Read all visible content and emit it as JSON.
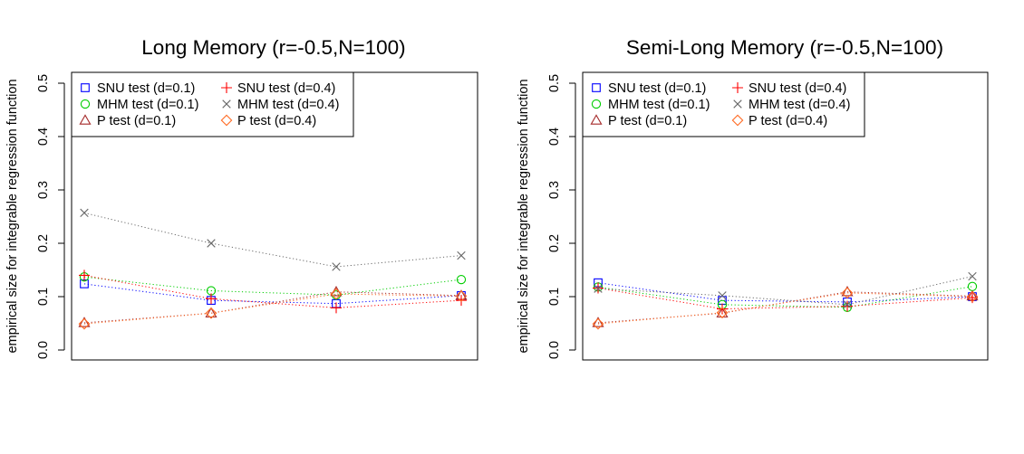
{
  "chart_data": [
    {
      "type": "scatter",
      "title": "Long Memory (r=-0.5,N=100)",
      "xlabel": "",
      "ylabel": "empirical size for integrable regression function",
      "ylim": [
        0,
        0.5
      ],
      "yticks": [
        "0.0",
        "0.1",
        "0.2",
        "0.3",
        "0.4",
        "0.5"
      ],
      "x": [
        1,
        2,
        3,
        4
      ],
      "grid": false,
      "legend_position": "top-left",
      "series": [
        {
          "name": "SNU test (d=0.1)",
          "marker": "square",
          "color": "#0000FF",
          "values": [
            0.124,
            0.093,
            0.087,
            0.102
          ]
        },
        {
          "name": "MHM test (d=0.1)",
          "marker": "circle",
          "color": "#00CD00",
          "values": [
            0.137,
            0.111,
            0.103,
            0.132
          ]
        },
        {
          "name": "P test (d=0.1)",
          "marker": "triangle",
          "color": "#A52A2A",
          "values": [
            0.051,
            0.069,
            0.109,
            0.102
          ]
        },
        {
          "name": "SNU test (d=0.4)",
          "marker": "plus",
          "color": "#FF0000",
          "values": [
            0.14,
            0.096,
            0.079,
            0.093
          ]
        },
        {
          "name": "MHM test (d=0.4)",
          "marker": "cross",
          "color": "#696969",
          "values": [
            0.257,
            0.2,
            0.156,
            0.177
          ]
        },
        {
          "name": "P test (d=0.4)",
          "marker": "diamond",
          "color": "#FF6A22",
          "values": [
            0.049,
            0.069,
            0.105,
            0.101
          ]
        }
      ]
    },
    {
      "type": "scatter",
      "title": "Semi-Long Memory (r=-0.5,N=100)",
      "xlabel": "",
      "ylabel": "empirical size for integrable regression function",
      "ylim": [
        0,
        0.5
      ],
      "yticks": [
        "0.0",
        "0.1",
        "0.2",
        "0.3",
        "0.4",
        "0.5"
      ],
      "x": [
        1,
        2,
        3,
        4
      ],
      "grid": false,
      "legend_position": "top-left",
      "series": [
        {
          "name": "SNU test (d=0.1)",
          "marker": "square",
          "color": "#0000FF",
          "values": [
            0.126,
            0.093,
            0.09,
            0.1
          ]
        },
        {
          "name": "MHM test (d=0.1)",
          "marker": "circle",
          "color": "#00CD00",
          "values": [
            0.118,
            0.085,
            0.08,
            0.119
          ]
        },
        {
          "name": "P test (d=0.1)",
          "marker": "triangle",
          "color": "#A52A2A",
          "values": [
            0.051,
            0.069,
            0.109,
            0.101
          ]
        },
        {
          "name": "SNU test (d=0.4)",
          "marker": "plus",
          "color": "#FF0000",
          "values": [
            0.116,
            0.077,
            0.082,
            0.098
          ]
        },
        {
          "name": "MHM test (d=0.4)",
          "marker": "cross",
          "color": "#696969",
          "values": [
            0.115,
            0.102,
            0.085,
            0.138
          ]
        },
        {
          "name": "P test (d=0.4)",
          "marker": "diamond",
          "color": "#FF6A22",
          "values": [
            0.049,
            0.07,
            0.107,
            0.1
          ]
        }
      ]
    }
  ]
}
